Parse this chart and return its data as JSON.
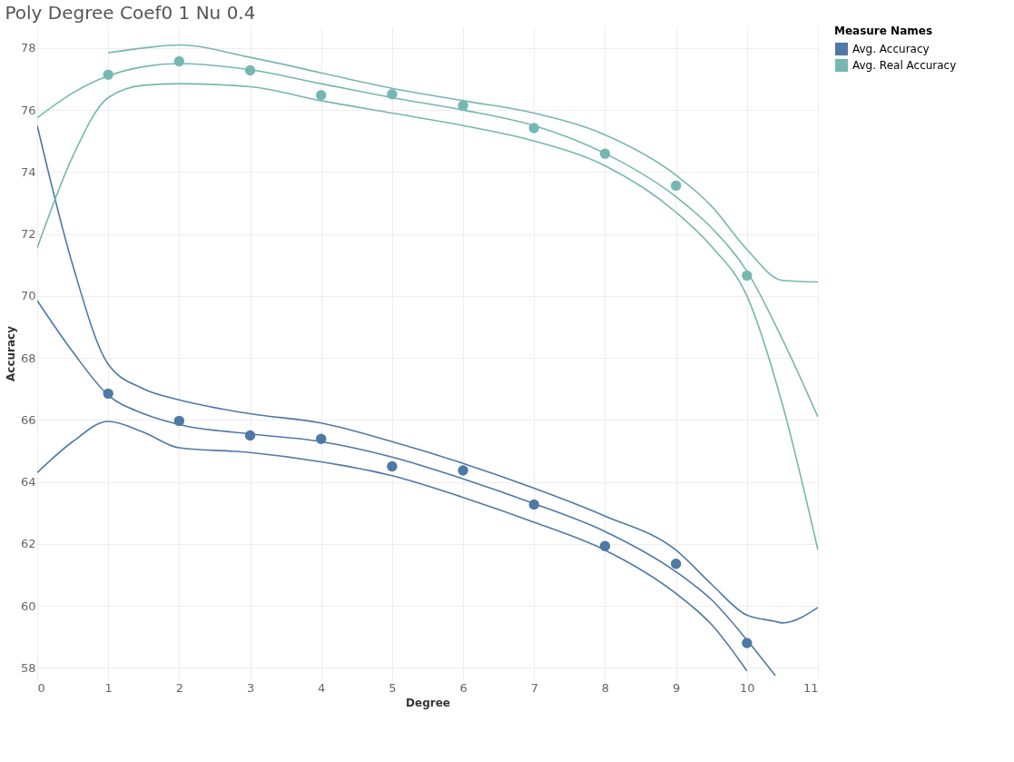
{
  "chart_data": {
    "type": "scatter",
    "title": "Poly Degree Coef0 1 Nu 0.4",
    "xlabel": "Degree",
    "ylabel": "Accuracy",
    "legend_title": "Measure Names",
    "legend": "top right",
    "grid": true,
    "xlim": [
      0,
      11
    ],
    "ylim": [
      57.6,
      78.7
    ],
    "xticks": [
      0,
      1,
      2,
      3,
      4,
      5,
      6,
      7,
      8,
      9,
      10,
      11
    ],
    "yticks": [
      58,
      60,
      62,
      64,
      66,
      68,
      70,
      72,
      74,
      76,
      78
    ],
    "series": [
      {
        "name": "Avg. Accuracy",
        "marker": "circle",
        "color": "#4e79a7",
        "x": [
          1,
          2,
          3,
          4,
          5,
          6,
          7,
          8,
          9,
          10
        ],
        "values": [
          66.85,
          65.97,
          65.5,
          65.39,
          64.5,
          64.37,
          63.27,
          61.93,
          61.36,
          58.8
        ]
      },
      {
        "name": "Avg. Real Accuracy",
        "marker": "circle",
        "color": "#76b7b2",
        "x": [
          1,
          2,
          3,
          4,
          5,
          6,
          7,
          8,
          9,
          10
        ],
        "values": [
          77.14,
          77.57,
          77.28,
          76.48,
          76.51,
          76.14,
          75.42,
          74.59,
          73.56,
          70.66
        ]
      },
      {
        "type": "line",
        "color": "#4e79a7",
        "x": [
          0,
          0.5,
          1,
          1.5,
          2,
          3,
          4,
          5,
          6,
          7,
          8,
          9,
          9.5,
          10,
          10.4
        ],
        "values": [
          69.85,
          68.2,
          66.8,
          66.2,
          65.85,
          65.55,
          65.3,
          64.8,
          64.1,
          63.3,
          62.4,
          61.1,
          60.2,
          58.9,
          57.75
        ]
      },
      {
        "type": "line",
        "color": "#4e79a7",
        "x": [
          0,
          0.5,
          1,
          1.5,
          2,
          3,
          4,
          5,
          6,
          7,
          8,
          9,
          9.5,
          10
        ],
        "values": [
          64.3,
          65.3,
          65.95,
          65.6,
          65.1,
          64.95,
          64.65,
          64.2,
          63.5,
          62.7,
          61.8,
          60.4,
          59.4,
          57.9
        ]
      },
      {
        "type": "line",
        "color": "#4e79a7",
        "x": [
          0,
          0.5,
          1,
          1.5,
          2,
          3,
          4,
          5,
          6,
          7,
          8,
          9,
          9.5,
          10,
          10.4,
          10.5,
          11
        ],
        "values": [
          75.5,
          71.0,
          67.8,
          67.0,
          66.65,
          66.2,
          65.9,
          65.3,
          64.6,
          63.8,
          62.9,
          61.8,
          60.7,
          59.7,
          59.5,
          59.45,
          59.95
        ]
      },
      {
        "type": "line",
        "color": "#76b7b2",
        "x": [
          0,
          0.5,
          1,
          1.5,
          2,
          3,
          4,
          5,
          6,
          7,
          8,
          9,
          9.5,
          10,
          10.5,
          11
        ],
        "values": [
          75.75,
          76.55,
          77.1,
          77.4,
          77.5,
          77.3,
          76.85,
          76.4,
          76.0,
          75.5,
          74.6,
          73.2,
          72.2,
          70.8,
          68.6,
          66.1
        ]
      },
      {
        "type": "line",
        "color": "#76b7b2",
        "x": [
          0,
          0.5,
          1,
          1.5,
          2,
          3,
          4,
          5,
          6,
          7,
          8,
          9,
          9.5,
          10,
          10.5,
          11
        ],
        "values": [
          71.55,
          74.5,
          76.4,
          76.8,
          76.85,
          76.75,
          76.3,
          75.9,
          75.5,
          75.0,
          74.2,
          72.7,
          71.6,
          70.0,
          66.5,
          61.8
        ]
      },
      {
        "type": "line",
        "color": "#76b7b2",
        "x": [
          1,
          1.5,
          2,
          3,
          4,
          5,
          6,
          7,
          8,
          9,
          9.5,
          10,
          10.5,
          11
        ],
        "values": [
          77.85,
          78.0,
          78.1,
          77.7,
          77.2,
          76.7,
          76.3,
          75.9,
          75.2,
          73.9,
          72.9,
          71.5,
          70.5,
          70.45
        ]
      }
    ]
  }
}
